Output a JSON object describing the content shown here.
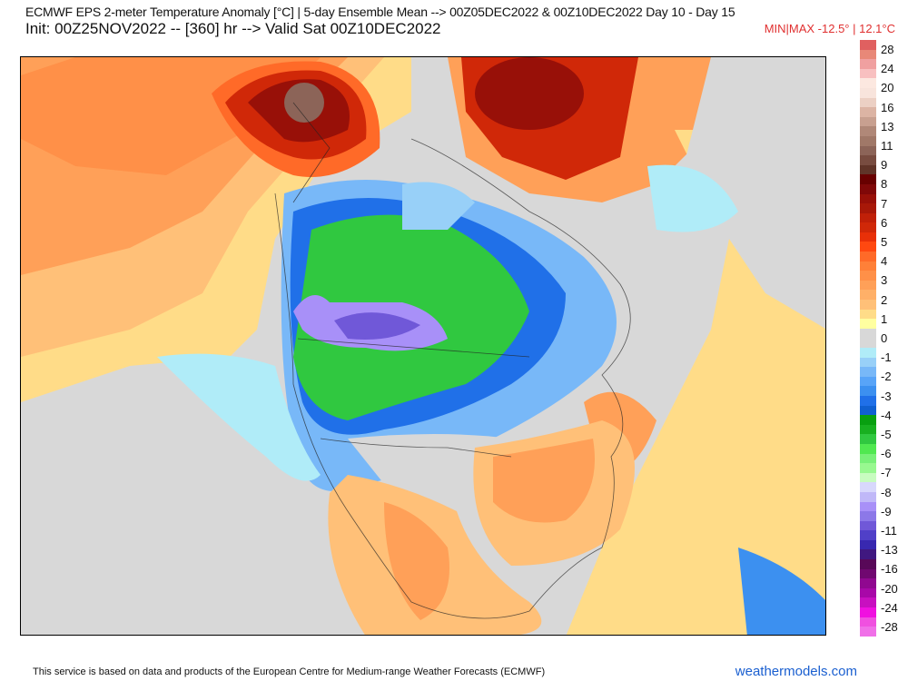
{
  "header": {
    "title": "ECMWF EPS 2-meter Temperature Anomaly [°C] | 5-day Ensemble Mean --> 00Z05DEC2022 & 00Z10DEC2022  Day 10 - Day 15",
    "subtitle": "Init: 00Z25NOV2022 -- [360] hr --> Valid Sat 00Z10DEC2022",
    "minmax": "MIN|MAX -12.5° | 12.1°C"
  },
  "colorbar": {
    "labels": [
      "28",
      "24",
      "20",
      "16",
      "13",
      "11",
      "9",
      "8",
      "7",
      "6",
      "5",
      "4",
      "3",
      "2",
      "1",
      "0",
      "-1",
      "-2",
      "-3",
      "-4",
      "-5",
      "-6",
      "-7",
      "-8",
      "-9",
      "-11",
      "-13",
      "-16",
      "-20",
      "-24",
      "-28"
    ],
    "colors": [
      "#e06060",
      "#e88878",
      "#f0a0a0",
      "#f8c0c0",
      "#fce8e0",
      "#f8e4dc",
      "#ecd0c4",
      "#dcb4a4",
      "#c8a090",
      "#b08878",
      "#a07868",
      "#8c6458",
      "#784c40",
      "#603428",
      "#680000",
      "#800808",
      "#981008",
      "#a81808",
      "#c02008",
      "#d02808",
      "#e83008",
      "#ff4810",
      "#ff6a28",
      "#ff8038",
      "#ff9048",
      "#ffa058",
      "#ffb068",
      "#ffc078",
      "#ffdc88",
      "#ffffa0",
      "#d8d8d8",
      "#d8d8d8",
      "#b0ecf8",
      "#98d0f8",
      "#78b8f8",
      "#58a4f8",
      "#3c90f0",
      "#2070e8",
      "#1060d0",
      "#08a010",
      "#18b020",
      "#30c840",
      "#50e850",
      "#78f078",
      "#98f890",
      "#c8fcc0",
      "#d8d8fc",
      "#c0b8f8",
      "#a890f8",
      "#8c78e8",
      "#7058d8",
      "#5040c8",
      "#3828b0",
      "#401880",
      "#580858",
      "#700870",
      "#900890",
      "#a808a8",
      "#c810c0",
      "#f010e0",
      "#f050e0",
      "#f070e8"
    ]
  },
  "footer": {
    "disclaimer": "This service is based on data and products of the European Centre for Medium-range Weather Forecasts (ECMWF)",
    "brand": "weathermodels.com"
  }
}
